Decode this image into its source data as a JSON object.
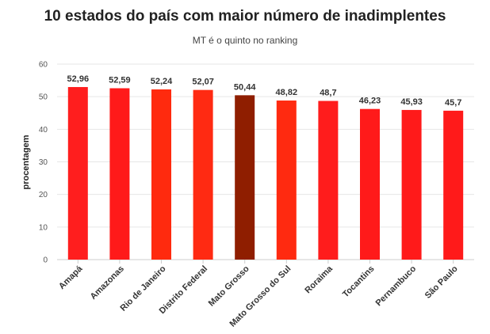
{
  "chart_data": {
    "type": "bar",
    "title": "10 estados do país com maior número de inadimplentes",
    "subtitle": "MT é o quinto no ranking",
    "ylabel": "procentagem",
    "xlabel": "",
    "ylim": [
      0,
      60
    ],
    "yticks": [
      0,
      10,
      20,
      30,
      40,
      50,
      60
    ],
    "categories": [
      "Amapá",
      "Amazonas",
      "Rio de Janeiro",
      "Distrito Federal",
      "Mato Grosso",
      "Mato Grosso do Sul",
      "Roraima",
      "Tocantins",
      "Pernambuco",
      "São Paulo"
    ],
    "values": [
      52.96,
      52.59,
      52.24,
      52.07,
      50.44,
      48.82,
      48.7,
      46.23,
      45.93,
      45.7
    ],
    "value_labels": [
      "52,96",
      "52,59",
      "52,24",
      "52,07",
      "50,44",
      "48,82",
      "48,7",
      "46,23",
      "45,93",
      "45,7"
    ],
    "colors": [
      "#ff1e1e",
      "#ff1a1a",
      "#ff2a0e",
      "#ff2a12",
      "#8f1e00",
      "#ff2a10",
      "#ff1c1c",
      "#ff1a1a",
      "#ff1a1a",
      "#ff1a1a"
    ],
    "grid": true,
    "legend": "none"
  }
}
